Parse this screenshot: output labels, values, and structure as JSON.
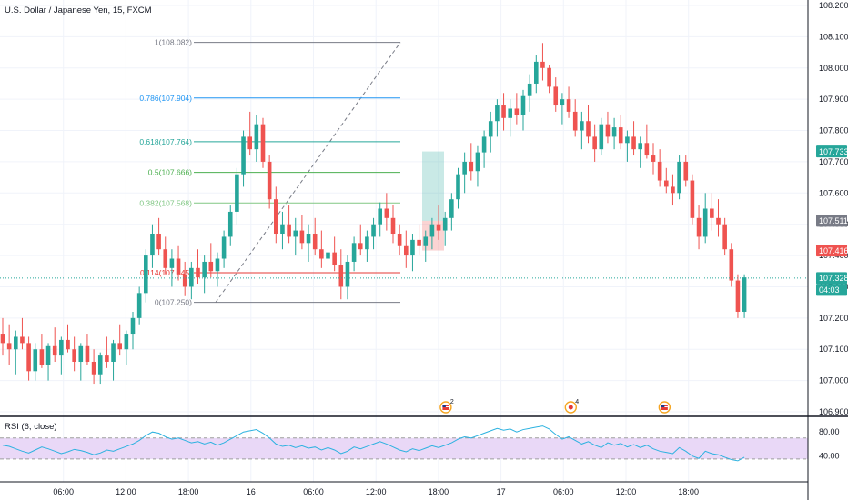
{
  "symbol_title": "U.S. Dollar / Japanese Yen, 15, FXCM",
  "price_axis": {
    "labels": [
      "108.200",
      "108.100",
      "108.000",
      "107.900",
      "107.800",
      "107.700",
      "107.600",
      "107.500",
      "107.400",
      "107.300",
      "107.200",
      "107.100",
      "107.000",
      "106.900"
    ],
    "range": [
      106.9,
      108.2
    ]
  },
  "time_axis": {
    "labels": [
      {
        "text": "06:00",
        "hour": 6
      },
      {
        "text": "12:00",
        "hour": 12
      },
      {
        "text": "18:00",
        "hour": 18
      },
      {
        "text": "16",
        "hour": 24
      },
      {
        "text": "06:00",
        "hour": 30
      },
      {
        "text": "12:00",
        "hour": 36
      },
      {
        "text": "18:00",
        "hour": 42
      },
      {
        "text": "17",
        "hour": 48
      },
      {
        "text": "06:00",
        "hour": 54
      },
      {
        "text": "12:00",
        "hour": 60
      },
      {
        "text": "18:00",
        "hour": 66
      }
    ]
  },
  "fib_levels": [
    {
      "label": "1(108.082)",
      "price": 108.082,
      "color": "#787b86"
    },
    {
      "label": "0.786(107.904)",
      "price": 107.904,
      "color": "#2196f3"
    },
    {
      "label": "0.618(107.764)",
      "price": 107.764,
      "color": "#26a69a"
    },
    {
      "label": "0.5(107.666)",
      "price": 107.666,
      "color": "#4caf50"
    },
    {
      "label": "0.382(107.568)",
      "price": 107.568,
      "color": "#81c784"
    },
    {
      "label": "0.114(107.345)",
      "price": 107.345,
      "color": "#e53935"
    },
    {
      "label": "0(107.250)",
      "price": 107.25,
      "color": "#787b86"
    }
  ],
  "price_tags": [
    {
      "text": "107.733",
      "price": 107.733,
      "color": "#26a69a"
    },
    {
      "text": "107.511",
      "price": 107.511,
      "color": "#787b86"
    },
    {
      "text": "107.416",
      "price": 107.416,
      "color": "#ef5350"
    },
    {
      "text": "107.328",
      "price": 107.328,
      "color": "#26a69a"
    },
    {
      "text": "04:03",
      "price": 107.31,
      "color": "#26a69a"
    }
  ],
  "current_price": 107.328,
  "events": [
    {
      "icon": "us-flag-event-icon",
      "count": "2",
      "hour": 42
    },
    {
      "icon": "event-dot-icon",
      "count": "4",
      "hour": 54
    },
    {
      "icon": "us-flag-event-icon",
      "count": "",
      "hour": 63
    }
  ],
  "rsi_panel": {
    "title": "RSI (6, close)",
    "labels": [
      {
        "text": "80.00",
        "value": 80
      },
      {
        "text": "40.00",
        "value": 40
      }
    ],
    "band": [
      35,
      70
    ]
  },
  "colors": {
    "up": "#26a69a",
    "down": "#ef5350",
    "rsi_line": "#2cb2e0",
    "rsi_band": "#e9d8f7",
    "grid": "#f0f3fa"
  },
  "chart_data": {
    "type": "candlestick",
    "series": [
      {
        "values": [
          [
            107.15,
            107.2,
            107.08,
            107.12
          ],
          [
            107.12,
            107.18,
            107.05,
            107.1
          ],
          [
            107.1,
            107.16,
            107.02,
            107.14
          ],
          [
            107.14,
            107.2,
            107.1,
            107.12
          ],
          [
            107.12,
            107.14,
            107.0,
            107.03
          ],
          [
            107.03,
            107.12,
            107.0,
            107.1
          ],
          [
            107.1,
            107.15,
            107.04,
            107.05
          ],
          [
            107.05,
            107.12,
            107.0,
            107.11
          ],
          [
            107.11,
            107.17,
            107.06,
            107.08
          ],
          [
            107.08,
            107.14,
            107.02,
            107.13
          ],
          [
            107.13,
            107.18,
            107.09,
            107.1
          ],
          [
            107.1,
            107.14,
            107.03,
            107.06
          ],
          [
            107.06,
            107.12,
            107.0,
            107.11
          ],
          [
            107.11,
            107.15,
            107.05,
            107.06
          ],
          [
            107.06,
            107.1,
            106.99,
            107.02
          ],
          [
            107.02,
            107.09,
            106.99,
            107.08
          ],
          [
            107.08,
            107.14,
            107.04,
            107.06
          ],
          [
            107.06,
            107.13,
            107.0,
            107.12
          ],
          [
            107.12,
            107.18,
            107.08,
            107.1
          ],
          [
            107.1,
            107.16,
            107.05,
            107.15
          ],
          [
            107.15,
            107.22,
            107.1,
            107.2
          ],
          [
            107.2,
            107.3,
            107.18,
            107.28
          ],
          [
            107.28,
            107.42,
            107.25,
            107.4
          ],
          [
            107.4,
            107.5,
            107.36,
            107.47
          ],
          [
            107.47,
            107.52,
            107.4,
            107.42
          ],
          [
            107.42,
            107.46,
            107.34,
            107.36
          ],
          [
            107.36,
            107.42,
            107.3,
            107.39
          ],
          [
            107.39,
            107.43,
            107.32,
            107.34
          ],
          [
            107.34,
            107.38,
            107.27,
            107.3
          ],
          [
            107.3,
            107.38,
            107.26,
            107.36
          ],
          [
            107.36,
            107.42,
            107.31,
            107.33
          ],
          [
            107.33,
            107.4,
            107.28,
            107.38
          ],
          [
            107.38,
            107.44,
            107.33,
            107.35
          ],
          [
            107.35,
            107.41,
            107.3,
            107.39
          ],
          [
            107.39,
            107.48,
            107.36,
            107.46
          ],
          [
            107.46,
            107.56,
            107.43,
            107.54
          ],
          [
            107.54,
            107.68,
            107.5,
            107.66
          ],
          [
            107.66,
            107.8,
            107.62,
            107.78
          ],
          [
            107.78,
            107.86,
            107.72,
            107.74
          ],
          [
            107.74,
            107.85,
            107.7,
            107.82
          ],
          [
            107.82,
            107.84,
            107.68,
            107.7
          ],
          [
            107.7,
            107.72,
            107.55,
            107.58
          ],
          [
            107.58,
            107.62,
            107.44,
            107.47
          ],
          [
            107.47,
            107.54,
            107.42,
            107.5
          ],
          [
            107.5,
            107.56,
            107.44,
            107.46
          ],
          [
            107.46,
            107.52,
            107.4,
            107.48
          ],
          [
            107.48,
            107.53,
            107.42,
            107.44
          ],
          [
            107.44,
            107.5,
            107.38,
            107.47
          ],
          [
            107.47,
            107.52,
            107.4,
            107.42
          ],
          [
            107.42,
            107.48,
            107.36,
            107.39
          ],
          [
            107.39,
            107.44,
            107.33,
            107.41
          ],
          [
            107.41,
            107.46,
            107.35,
            107.37
          ],
          [
            107.37,
            107.42,
            107.26,
            107.3
          ],
          [
            107.3,
            107.4,
            107.26,
            107.38
          ],
          [
            107.38,
            107.46,
            107.35,
            107.44
          ],
          [
            107.44,
            107.5,
            107.4,
            107.42
          ],
          [
            107.42,
            107.48,
            107.38,
            107.46
          ],
          [
            107.46,
            107.52,
            107.42,
            107.5
          ],
          [
            107.5,
            107.57,
            107.46,
            107.55
          ],
          [
            107.55,
            107.6,
            107.48,
            107.52
          ],
          [
            107.52,
            107.56,
            107.44,
            107.47
          ],
          [
            107.47,
            107.5,
            107.4,
            107.43
          ],
          [
            107.43,
            107.48,
            107.36,
            107.4
          ],
          [
            107.4,
            107.47,
            107.35,
            107.45
          ],
          [
            107.45,
            107.5,
            107.4,
            107.43
          ],
          [
            107.43,
            107.48,
            107.38,
            107.46
          ],
          [
            107.46,
            107.52,
            107.42,
            107.5
          ],
          [
            107.5,
            107.56,
            107.45,
            107.48
          ],
          [
            107.48,
            107.54,
            107.43,
            107.52
          ],
          [
            107.52,
            107.6,
            107.48,
            107.58
          ],
          [
            107.58,
            107.68,
            107.55,
            107.66
          ],
          [
            107.66,
            107.73,
            107.6,
            107.7
          ],
          [
            107.7,
            107.76,
            107.64,
            107.67
          ],
          [
            107.67,
            107.75,
            107.62,
            107.73
          ],
          [
            107.73,
            107.8,
            107.68,
            107.78
          ],
          [
            107.78,
            107.86,
            107.73,
            107.83
          ],
          [
            107.83,
            107.9,
            107.78,
            107.88
          ],
          [
            107.88,
            107.92,
            107.8,
            107.84
          ],
          [
            107.84,
            107.9,
            107.78,
            107.87
          ],
          [
            107.87,
            107.92,
            107.82,
            107.85
          ],
          [
            107.85,
            107.93,
            107.8,
            107.91
          ],
          [
            107.91,
            107.98,
            107.86,
            107.95
          ],
          [
            107.95,
            108.04,
            107.92,
            108.02
          ],
          [
            108.02,
            108.08,
            107.96,
            108.0
          ],
          [
            108.0,
            108.01,
            107.92,
            107.94
          ],
          [
            107.94,
            107.97,
            107.86,
            107.88
          ],
          [
            107.88,
            107.92,
            107.82,
            107.9
          ],
          [
            107.9,
            107.94,
            107.84,
            107.86
          ],
          [
            107.86,
            107.9,
            107.78,
            107.8
          ],
          [
            107.8,
            107.86,
            107.74,
            107.83
          ],
          [
            107.83,
            107.88,
            107.76,
            107.78
          ],
          [
            107.78,
            107.82,
            107.7,
            107.74
          ],
          [
            107.74,
            107.84,
            107.72,
            107.82
          ],
          [
            107.82,
            107.86,
            107.76,
            107.78
          ],
          [
            107.78,
            107.84,
            107.74,
            107.81
          ],
          [
            107.81,
            107.85,
            107.74,
            107.76
          ],
          [
            107.76,
            107.8,
            107.7,
            107.78
          ],
          [
            107.78,
            107.83,
            107.72,
            107.74
          ],
          [
            107.74,
            107.78,
            107.68,
            107.76
          ],
          [
            107.76,
            107.82,
            107.71,
            107.72
          ],
          [
            107.72,
            107.76,
            107.66,
            107.7
          ],
          [
            107.7,
            107.74,
            107.62,
            107.64
          ],
          [
            107.64,
            107.68,
            107.6,
            107.62
          ],
          [
            107.62,
            107.66,
            107.56,
            107.6
          ],
          [
            107.6,
            107.72,
            107.58,
            107.7
          ],
          [
            107.7,
            107.72,
            107.62,
            107.64
          ],
          [
            107.64,
            107.66,
            107.5,
            107.52
          ],
          [
            107.52,
            107.56,
            107.42,
            107.46
          ],
          [
            107.46,
            107.6,
            107.44,
            107.55
          ],
          [
            107.55,
            107.6,
            107.48,
            107.52
          ],
          [
            107.52,
            107.58,
            107.46,
            107.5
          ],
          [
            107.5,
            107.52,
            107.4,
            107.42
          ],
          [
            107.42,
            107.44,
            107.3,
            107.32
          ],
          [
            107.32,
            107.34,
            107.2,
            107.22
          ],
          [
            107.22,
            107.34,
            107.2,
            107.33
          ]
        ]
      }
    ]
  },
  "rsi_data": [
    58,
    56,
    52,
    48,
    45,
    50,
    55,
    52,
    48,
    44,
    47,
    51,
    49,
    46,
    42,
    45,
    50,
    48,
    52,
    56,
    60,
    66,
    74,
    80,
    78,
    72,
    68,
    70,
    66,
    62,
    64,
    60,
    63,
    58,
    62,
    68,
    74,
    80,
    82,
    84,
    78,
    70,
    60,
    56,
    58,
    54,
    57,
    53,
    55,
    50,
    54,
    50,
    44,
    48,
    55,
    52,
    56,
    60,
    64,
    60,
    55,
    50,
    47,
    52,
    49,
    53,
    57,
    54,
    58,
    62,
    68,
    72,
    70,
    74,
    78,
    82,
    86,
    83,
    85,
    80,
    84,
    86,
    88,
    90,
    85,
    76,
    68,
    72,
    66,
    60,
    64,
    58,
    54,
    62,
    58,
    61,
    55,
    59,
    54,
    58,
    52,
    48,
    46,
    44,
    54,
    48,
    40,
    36,
    48,
    44,
    42,
    38,
    34,
    32,
    38
  ]
}
